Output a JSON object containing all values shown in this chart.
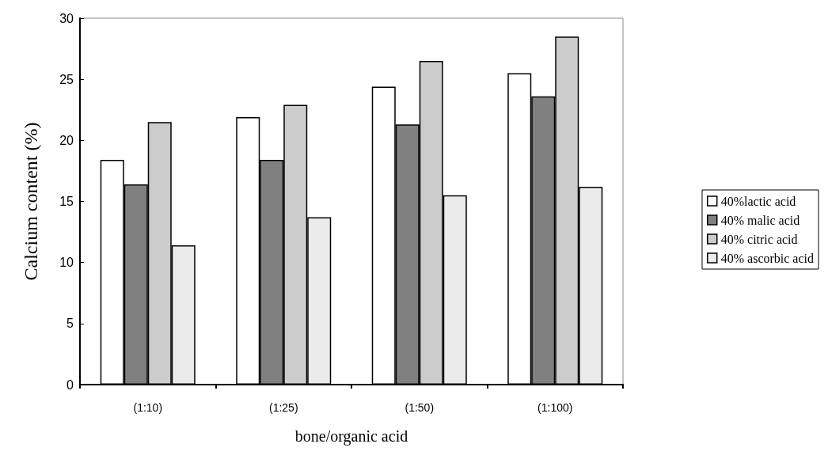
{
  "chart_data": {
    "type": "bar",
    "xlabel": "bone/organic acid",
    "ylabel": "Calcium content (%)",
    "categories": [
      "(1:10)",
      "(1:25)",
      "(1:50)",
      "(1:100)"
    ],
    "series": [
      {
        "name": "40%lactic acid",
        "color": "#ffffff",
        "values": [
          18.4,
          21.9,
          24.4,
          25.5
        ]
      },
      {
        "name": "40% malic acid",
        "color": "#808080",
        "values": [
          16.4,
          18.4,
          21.3,
          23.6
        ]
      },
      {
        "name": "40% citric acid",
        "color": "#cccccc",
        "values": [
          21.5,
          22.9,
          26.5,
          28.5
        ]
      },
      {
        "name": "40% ascorbic acid",
        "color": "#ebebeb",
        "values": [
          11.4,
          13.7,
          15.5,
          16.2
        ]
      }
    ],
    "ylim": [
      0,
      30
    ],
    "yticks": [
      0,
      5,
      10,
      15,
      20,
      25,
      30
    ],
    "grid": false,
    "legend": "right"
  }
}
